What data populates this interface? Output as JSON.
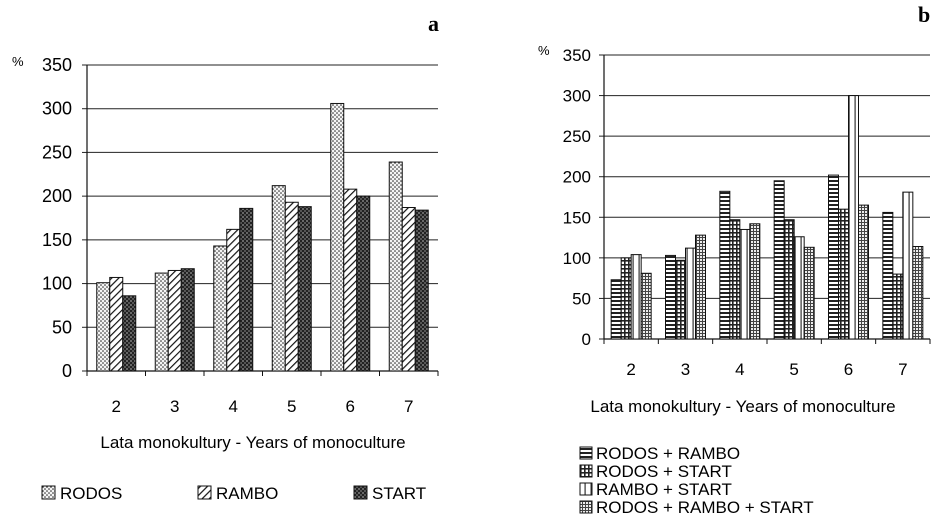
{
  "figure": {
    "panel_a_letter": "a",
    "panel_b_letter": "b",
    "percent_symbol": "%"
  },
  "chart_data": [
    {
      "type": "bar",
      "panel": "a",
      "categories": [
        "2",
        "3",
        "4",
        "5",
        "6",
        "7"
      ],
      "series": [
        {
          "name": "RODOS",
          "values": [
            101,
            112,
            143,
            212,
            306,
            239
          ],
          "pattern": "dots"
        },
        {
          "name": "RAMBO",
          "values": [
            107,
            115,
            162,
            193,
            208,
            187
          ],
          "pattern": "diagonal"
        },
        {
          "name": "START",
          "values": [
            86,
            117,
            186,
            188,
            200,
            184
          ],
          "pattern": "checker"
        }
      ],
      "xlabel": "Lata monokultury - Years of monoculture",
      "ylabel": "%",
      "ylim": [
        0,
        350
      ],
      "yticks": [
        "0",
        "50",
        "100",
        "150",
        "200",
        "250",
        "300",
        "350"
      ],
      "grid": true,
      "legend_position": "bottom"
    },
    {
      "type": "bar",
      "panel": "b",
      "categories": [
        "2",
        "3",
        "4",
        "5",
        "6",
        "7"
      ],
      "series": [
        {
          "name": "RODOS + RAMBO",
          "values": [
            73,
            103,
            182,
            195,
            202,
            156
          ],
          "pattern": "hstripes"
        },
        {
          "name": "RODOS + START",
          "values": [
            100,
            97,
            147,
            147,
            160,
            80
          ],
          "pattern": "grid"
        },
        {
          "name": "RAMBO + START",
          "values": [
            104,
            112,
            135,
            126,
            300,
            181
          ],
          "pattern": "vstripes"
        },
        {
          "name": "RODOS + RAMBO + START",
          "values": [
            81,
            128,
            142,
            113,
            165,
            114
          ],
          "pattern": "finegrid"
        }
      ],
      "xlabel": "Lata monokultury - Years of monoculture",
      "ylabel": "%",
      "ylim": [
        0,
        350
      ],
      "yticks": [
        "0",
        "50",
        "100",
        "150",
        "200",
        "250",
        "300",
        "350"
      ],
      "grid": true,
      "legend_position": "bottom"
    }
  ]
}
